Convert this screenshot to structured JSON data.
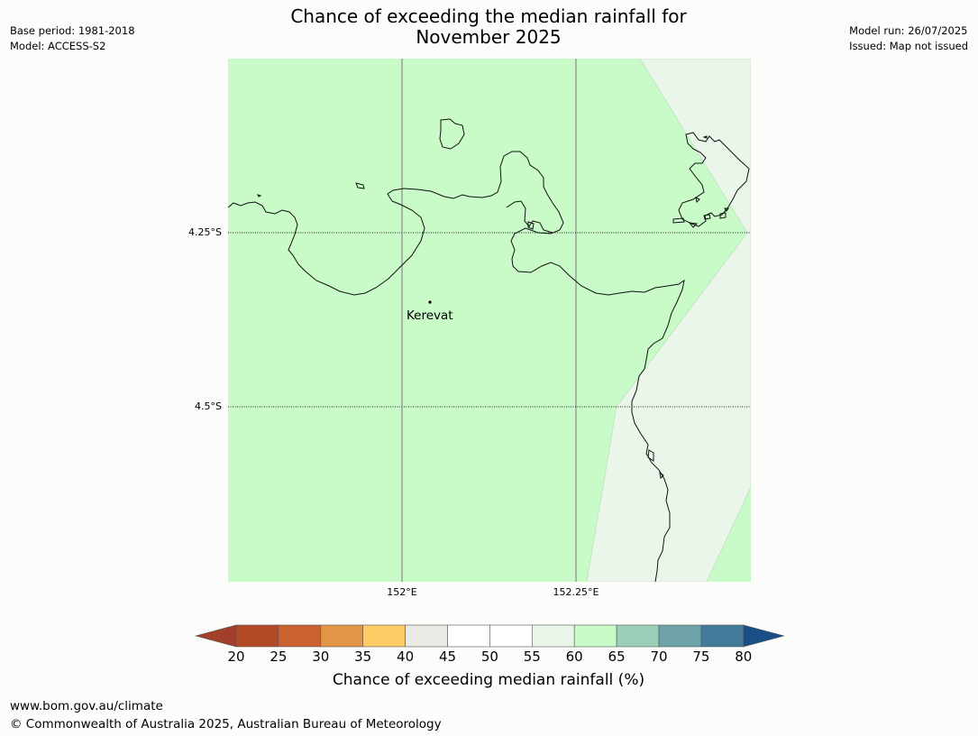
{
  "title_line1": "Chance of exceeding the median rainfall for",
  "title_line2": "November 2025",
  "meta_left": {
    "base_period": "Base period: 1981-2018",
    "model": "Model: ACCESS-S2"
  },
  "meta_right": {
    "model_run": "Model run: 26/07/2025",
    "issued": "Issued: Map not issued"
  },
  "map": {
    "lat_labels": [
      "4.25°S",
      "4.5°S"
    ],
    "lon_labels": [
      "152°E",
      "152.25°E"
    ],
    "place": "Kerevat",
    "regions": {
      "main_class": "60-65",
      "east_class": "55-60"
    }
  },
  "legend": {
    "title": "Chance of exceeding median rainfall (%)",
    "ticks": [
      "20",
      "25",
      "30",
      "35",
      "40",
      "45",
      "50",
      "55",
      "60",
      "65",
      "70",
      "75",
      "80"
    ],
    "colors": {
      "below_20": "#a0402a",
      "20-25": "#b34a26",
      "25-30": "#cc6232",
      "30-35": "#e29447",
      "35-40": "#fecb65",
      "40-45": "#ebe9e4",
      "45-50": "#ffffff",
      "50-55": "#ffffff",
      "55-60": "#ebf6ea",
      "60-65": "#c9fbc9",
      "65-70": "#9ccfb9",
      "70-75": "#6ea3a7",
      "75-80": "#427a9a",
      "above_80": "#1a4f86"
    }
  },
  "footer": {
    "url": "www.bom.gov.au/climate",
    "copyright": "© Commonwealth of Australia 2025, Australian Bureau of Meteorology"
  }
}
